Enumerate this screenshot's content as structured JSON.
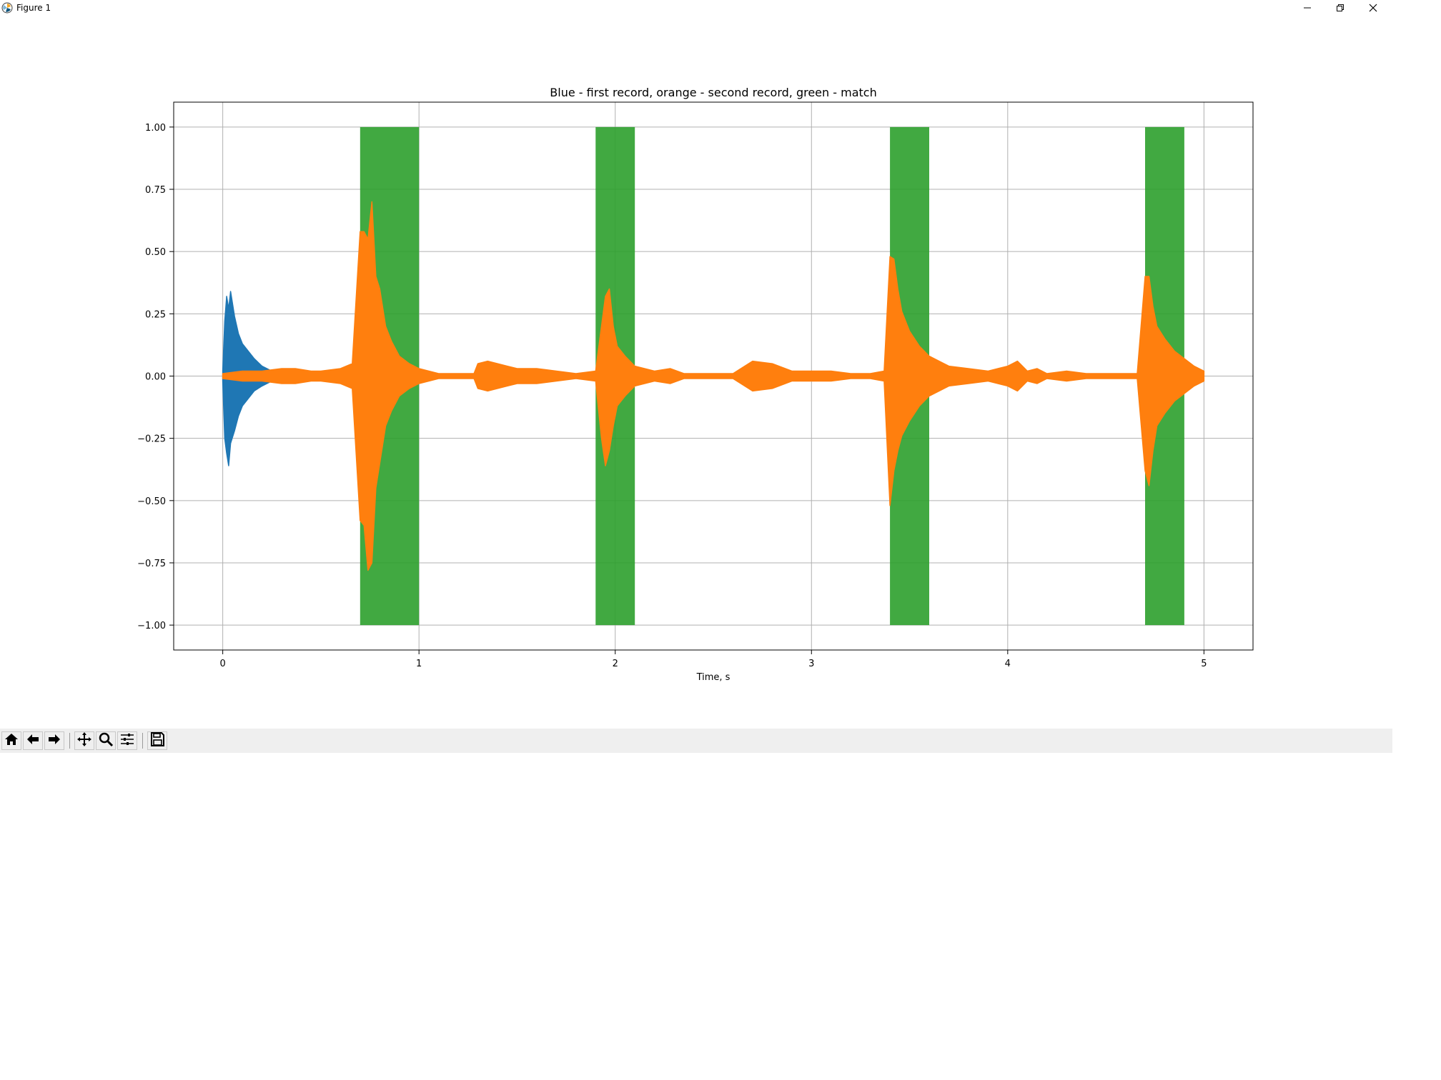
{
  "window": {
    "title": "Figure 1",
    "controls": [
      "minimize",
      "restore",
      "close"
    ]
  },
  "toolbar": {
    "buttons": [
      {
        "icon": "home-icon",
        "action": "home"
      },
      {
        "icon": "back-arrow-icon",
        "action": "back"
      },
      {
        "icon": "forward-arrow-icon",
        "action": "forward"
      },
      {
        "icon": "pan-icon",
        "action": "pan"
      },
      {
        "icon": "zoom-icon",
        "action": "zoom"
      },
      {
        "icon": "subplots-icon",
        "action": "configure-subplots"
      },
      {
        "icon": "save-icon",
        "action": "save"
      }
    ]
  },
  "colors": {
    "blue": "#1f77b4",
    "orange": "#ff7f0e",
    "green": "#2ca02c",
    "grid": "#b0b0b0"
  },
  "chart_data": {
    "type": "line",
    "title": "Blue - first record, orange - second record, green - match",
    "xlabel": "Time, s",
    "ylabel": "",
    "xlim": [
      -0.25,
      5.25
    ],
    "ylim": [
      -1.1,
      1.1
    ],
    "xticks": [
      0,
      1,
      2,
      3,
      4,
      5
    ],
    "yticks": [
      1.0,
      0.75,
      0.5,
      0.25,
      0.0,
      -0.25,
      -0.5,
      -0.75,
      -1.0
    ],
    "ytick_labels": [
      "1.00",
      "0.75",
      "0.50",
      "0.25",
      "0.00",
      "−0.25",
      "−0.50",
      "−0.75",
      "−1.00"
    ],
    "grid": true,
    "match_regions": [
      {
        "x": [
          0.7,
          1.0
        ],
        "y": [
          -1,
          1
        ]
      },
      {
        "x": [
          1.9,
          2.1
        ],
        "y": [
          -1,
          1
        ]
      },
      {
        "x": [
          3.4,
          3.6
        ],
        "y": [
          -1,
          1
        ]
      },
      {
        "x": [
          4.7,
          4.9
        ],
        "y": [
          -1,
          1
        ]
      }
    ],
    "series": [
      {
        "color": "blue",
        "envelope": {
          "x": [
            0.0,
            0.01,
            0.02,
            0.03,
            0.04,
            0.06,
            0.08,
            0.1,
            0.13,
            0.16,
            0.2,
            0.25,
            0.3
          ],
          "ymax": [
            0.02,
            0.22,
            0.32,
            0.27,
            0.34,
            0.24,
            0.17,
            0.13,
            0.1,
            0.07,
            0.04,
            0.02,
            0.005
          ],
          "ymin": [
            -0.02,
            -0.25,
            -0.31,
            -0.36,
            -0.27,
            -0.22,
            -0.16,
            -0.12,
            -0.09,
            -0.06,
            -0.04,
            -0.02,
            -0.005
          ]
        }
      },
      {
        "color": "orange",
        "envelope": {
          "x": [
            0.0,
            0.1,
            0.2,
            0.3,
            0.37,
            0.45,
            0.5,
            0.6,
            0.66,
            0.7,
            0.72,
            0.74,
            0.76,
            0.78,
            0.8,
            0.83,
            0.86,
            0.9,
            0.95,
            1.0,
            1.05,
            1.1,
            1.2,
            1.28,
            1.3,
            1.35,
            1.4,
            1.45,
            1.5,
            1.6,
            1.7,
            1.8,
            1.9,
            1.93,
            1.95,
            1.97,
            1.99,
            2.01,
            2.05,
            2.1,
            2.2,
            2.28,
            2.35,
            2.4,
            2.5,
            2.6,
            2.7,
            2.8,
            2.9,
            3.0,
            3.1,
            3.2,
            3.3,
            3.37,
            3.4,
            3.42,
            3.44,
            3.46,
            3.5,
            3.55,
            3.6,
            3.7,
            3.8,
            3.9,
            4.0,
            4.05,
            4.1,
            4.15,
            4.2,
            4.3,
            4.4,
            4.5,
            4.6,
            4.66,
            4.7,
            4.72,
            4.74,
            4.76,
            4.8,
            4.85,
            4.9,
            4.95,
            5.0
          ],
          "ymax": [
            0.01,
            0.02,
            0.02,
            0.03,
            0.03,
            0.02,
            0.02,
            0.03,
            0.05,
            0.58,
            0.58,
            0.55,
            0.7,
            0.4,
            0.35,
            0.2,
            0.14,
            0.08,
            0.05,
            0.03,
            0.02,
            0.01,
            0.01,
            0.01,
            0.05,
            0.06,
            0.05,
            0.04,
            0.03,
            0.03,
            0.02,
            0.01,
            0.02,
            0.2,
            0.32,
            0.35,
            0.2,
            0.12,
            0.08,
            0.04,
            0.02,
            0.03,
            0.01,
            0.01,
            0.01,
            0.01,
            0.06,
            0.05,
            0.02,
            0.02,
            0.02,
            0.01,
            0.01,
            0.02,
            0.48,
            0.47,
            0.35,
            0.26,
            0.18,
            0.12,
            0.08,
            0.04,
            0.03,
            0.02,
            0.04,
            0.06,
            0.02,
            0.03,
            0.01,
            0.02,
            0.01,
            0.01,
            0.01,
            0.01,
            0.4,
            0.4,
            0.28,
            0.2,
            0.15,
            0.1,
            0.07,
            0.04,
            0.02
          ],
          "ymin": [
            -0.01,
            -0.02,
            -0.02,
            -0.03,
            -0.03,
            -0.02,
            -0.02,
            -0.03,
            -0.05,
            -0.58,
            -0.6,
            -0.78,
            -0.75,
            -0.45,
            -0.35,
            -0.2,
            -0.14,
            -0.08,
            -0.05,
            -0.03,
            -0.02,
            -0.01,
            -0.01,
            -0.01,
            -0.05,
            -0.06,
            -0.05,
            -0.04,
            -0.03,
            -0.03,
            -0.02,
            -0.01,
            -0.02,
            -0.25,
            -0.36,
            -0.3,
            -0.2,
            -0.12,
            -0.08,
            -0.04,
            -0.02,
            -0.03,
            -0.01,
            -0.01,
            -0.01,
            -0.01,
            -0.06,
            -0.05,
            -0.02,
            -0.02,
            -0.02,
            -0.01,
            -0.01,
            -0.02,
            -0.52,
            -0.38,
            -0.3,
            -0.24,
            -0.18,
            -0.12,
            -0.08,
            -0.04,
            -0.03,
            -0.02,
            -0.04,
            -0.06,
            -0.02,
            -0.03,
            -0.01,
            -0.02,
            -0.01,
            -0.01,
            -0.01,
            -0.01,
            -0.38,
            -0.44,
            -0.3,
            -0.2,
            -0.15,
            -0.1,
            -0.07,
            -0.04,
            -0.02
          ]
        }
      }
    ]
  }
}
